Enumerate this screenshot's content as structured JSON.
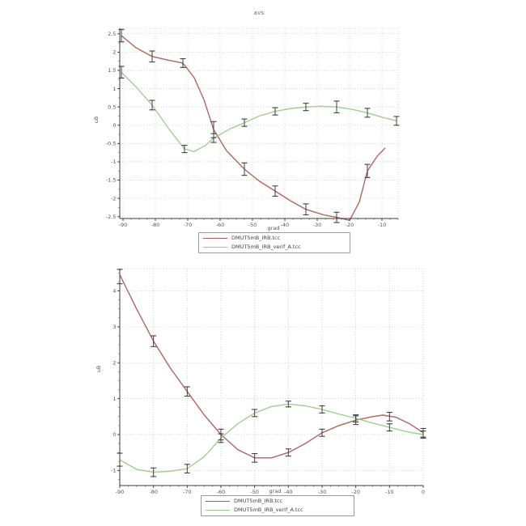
{
  "figure": {
    "background": "#ffffff",
    "axis_color": "#3c3c3c",
    "grid_color": "#c9cfc9",
    "errorbar_color": "#3f3f3f",
    "tick_label_color": "#555555"
  },
  "chart_data": [
    {
      "type": "line",
      "title": "avs",
      "xlabel": "grad",
      "ylabel": "uB",
      "grid": true,
      "legend_position": "below",
      "xlim": [
        -91,
        -5
      ],
      "ylim": [
        -2.55,
        2.65
      ],
      "xticks": [
        -90,
        -80,
        -70,
        -60,
        -50,
        -40,
        -30,
        -20,
        -10
      ],
      "yticks": [
        2.5,
        2,
        1.5,
        1,
        0.5,
        0,
        -0.5,
        -1,
        -1.5,
        -2,
        -2.5
      ],
      "xminor": 2.5,
      "yminor": 0.25,
      "series": [
        {
          "name": "DMUT5mB_IRB.tcc",
          "color": "#a85850",
          "curve": [
            [
              -90.5,
              2.45
            ],
            [
              -86,
              2.12
            ],
            [
              -81,
              1.88
            ],
            [
              -76,
              1.78
            ],
            [
              -71.5,
              1.7
            ],
            [
              -68,
              1.3
            ],
            [
              -65,
              0.7
            ],
            [
              -62,
              -0.12
            ],
            [
              -58,
              -0.7
            ],
            [
              -52.5,
              -1.2
            ],
            [
              -48,
              -1.52
            ],
            [
              -43,
              -1.8
            ],
            [
              -38,
              -2.08
            ],
            [
              -33.5,
              -2.3
            ],
            [
              -28,
              -2.45
            ],
            [
              -24,
              -2.52
            ],
            [
              -20,
              -2.6
            ],
            [
              -17,
              -2.1
            ],
            [
              -14.5,
              -1.25
            ],
            [
              -11.5,
              -0.85
            ],
            [
              -9,
              -0.62
            ]
          ],
          "points": [
            [
              -90.5,
              2.45,
              0.17
            ],
            [
              -81,
              1.88,
              0.15
            ],
            [
              -71.5,
              1.7,
              0.12
            ],
            [
              -62,
              -0.12,
              0.22
            ],
            [
              -52.5,
              -1.2,
              0.17
            ],
            [
              -43,
              -1.8,
              0.14
            ],
            [
              -33.5,
              -2.3,
              0.15
            ],
            [
              -24,
              -2.52,
              0.14
            ],
            [
              -14.5,
              -1.25,
              0.18
            ]
          ]
        },
        {
          "name": "DMUT5mB_IRB_verif_A.tcc",
          "color": "#9aca84",
          "curve": [
            [
              -90.5,
              1.45
            ],
            [
              -86,
              1.05
            ],
            [
              -81,
              0.55
            ],
            [
              -76,
              -0.08
            ],
            [
              -71,
              -0.65
            ],
            [
              -68,
              -0.72
            ],
            [
              -64.5,
              -0.55
            ],
            [
              -62,
              -0.35
            ],
            [
              -57,
              -0.1
            ],
            [
              -52.5,
              0.07
            ],
            [
              -48,
              0.25
            ],
            [
              -43,
              0.38
            ],
            [
              -38,
              0.46
            ],
            [
              -33.5,
              0.5
            ],
            [
              -29,
              0.52
            ],
            [
              -24,
              0.5
            ],
            [
              -19,
              0.43
            ],
            [
              -14.5,
              0.34
            ],
            [
              -10,
              0.22
            ],
            [
              -5.5,
              0.12
            ]
          ],
          "points": [
            [
              -90.5,
              1.45,
              0.16
            ],
            [
              -81,
              0.55,
              0.13
            ],
            [
              -71,
              -0.65,
              0.1
            ],
            [
              -62,
              -0.35,
              0.12
            ],
            [
              -52.5,
              0.07,
              0.1
            ],
            [
              -43,
              0.38,
              0.1
            ],
            [
              -33.5,
              0.5,
              0.1
            ],
            [
              -24,
              0.5,
              0.16
            ],
            [
              -14.5,
              0.34,
              0.12
            ],
            [
              -5.5,
              0.12,
              0.12
            ]
          ]
        }
      ]
    },
    {
      "type": "line",
      "title": "",
      "xlabel": "grad",
      "ylabel": "uB",
      "grid": true,
      "legend_position": "below",
      "xlim": [
        -90,
        0
      ],
      "ylim": [
        -1.42,
        4.62
      ],
      "xticks": [
        -90,
        -80,
        -70,
        -60,
        -50,
        -40,
        -30,
        -20,
        -10,
        0
      ],
      "yticks": [
        4,
        3,
        2,
        1,
        0,
        -1
      ],
      "xminor": 2.5,
      "yminor": 0.25,
      "series": [
        {
          "name": "DMUT5mB_IRB.tcc",
          "color": "#a85850",
          "curve": [
            [
              -90,
              4.45
            ],
            [
              -85,
              3.5
            ],
            [
              -80,
              2.6
            ],
            [
              -75,
              1.85
            ],
            [
              -70,
              1.2
            ],
            [
              -65,
              0.55
            ],
            [
              -60,
              0.0
            ],
            [
              -55,
              -0.42
            ],
            [
              -50,
              -0.65
            ],
            [
              -45,
              -0.65
            ],
            [
              -40,
              -0.5
            ],
            [
              -35,
              -0.25
            ],
            [
              -30,
              0.05
            ],
            [
              -25,
              0.25
            ],
            [
              -20,
              0.4
            ],
            [
              -15,
              0.5
            ],
            [
              -12,
              0.54
            ],
            [
              -8,
              0.48
            ],
            [
              -4,
              0.3
            ],
            [
              0,
              0.05
            ]
          ],
          "points": [
            [
              -90,
              4.4,
              0.2
            ],
            [
              -80,
              2.6,
              0.15
            ],
            [
              -70,
              1.2,
              0.13
            ],
            [
              -60,
              0.0,
              0.15
            ],
            [
              -50,
              -0.65,
              0.12
            ],
            [
              -40,
              -0.5,
              0.1
            ],
            [
              -30,
              0.05,
              0.1
            ],
            [
              -20,
              0.4,
              0.12
            ],
            [
              -10,
              0.5,
              0.12
            ],
            [
              0,
              0.05,
              0.12
            ]
          ]
        },
        {
          "name": "DMUT5mB_IRB_verif_A.tcc",
          "color": "#9aca84",
          "curve": [
            [
              -90,
              -0.7
            ],
            [
              -85,
              -0.97
            ],
            [
              -80,
              -1.05
            ],
            [
              -75,
              -1.02
            ],
            [
              -70,
              -0.95
            ],
            [
              -65,
              -0.62
            ],
            [
              -60,
              -0.1
            ],
            [
              -55,
              0.3
            ],
            [
              -50,
              0.6
            ],
            [
              -45,
              0.78
            ],
            [
              -40,
              0.85
            ],
            [
              -35,
              0.8
            ],
            [
              -30,
              0.7
            ],
            [
              -25,
              0.57
            ],
            [
              -20,
              0.45
            ],
            [
              -15,
              0.32
            ],
            [
              -10,
              0.2
            ],
            [
              -5,
              0.08
            ],
            [
              0,
              0.0
            ]
          ],
          "points": [
            [
              -90,
              -0.7,
              0.18
            ],
            [
              -80,
              -1.05,
              0.12
            ],
            [
              -70,
              -0.95,
              0.12
            ],
            [
              -60,
              -0.1,
              0.12
            ],
            [
              -50,
              0.6,
              0.1
            ],
            [
              -40,
              0.85,
              0.08
            ],
            [
              -30,
              0.7,
              0.1
            ],
            [
              -20,
              0.45,
              0.1
            ],
            [
              -10,
              0.2,
              0.1
            ],
            [
              0,
              0.0,
              0.1
            ]
          ]
        }
      ]
    }
  ]
}
